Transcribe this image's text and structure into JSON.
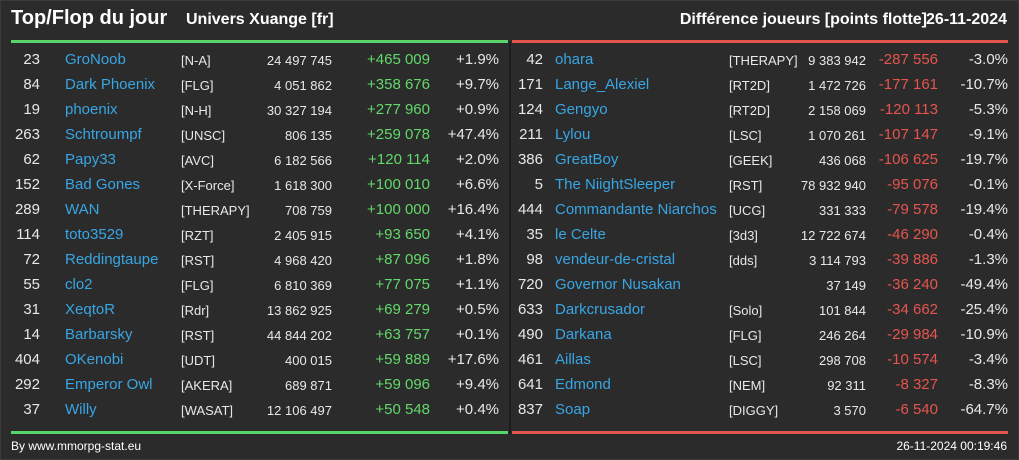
{
  "header": {
    "title": "Top/Flop du jour",
    "universe": "Univers Xuange [fr]",
    "metric": "Différence joueurs [points flotte]",
    "date": "26-11-2024"
  },
  "colors": {
    "top_bar": "#57d46a",
    "flop_bar": "#e4554d",
    "player_link": "#38a6e4",
    "positive": "#63d86a",
    "negative": "#e5554e"
  },
  "top": [
    {
      "rank": "23",
      "name": "GroNoob",
      "alliance": "[N-A]",
      "points": "24 497 745",
      "diff": "+465 009",
      "pct": "+1.9%"
    },
    {
      "rank": "84",
      "name": "Dark Phoenix",
      "alliance": "[FLG]",
      "points": "4 051 862",
      "diff": "+358 676",
      "pct": "+9.7%"
    },
    {
      "rank": "19",
      "name": "phoenix",
      "alliance": "[N-H]",
      "points": "30 327 194",
      "diff": "+277 960",
      "pct": "+0.9%"
    },
    {
      "rank": "263",
      "name": "Schtroumpf",
      "alliance": "[UNSC]",
      "points": "806 135",
      "diff": "+259 078",
      "pct": "+47.4%"
    },
    {
      "rank": "62",
      "name": "Papy33",
      "alliance": "[AVC]",
      "points": "6 182 566",
      "diff": "+120 114",
      "pct": "+2.0%"
    },
    {
      "rank": "152",
      "name": "Bad Gones",
      "alliance": "[X-Force]",
      "points": "1 618 300",
      "diff": "+100 010",
      "pct": "+6.6%"
    },
    {
      "rank": "289",
      "name": "WAN",
      "alliance": "[THERAPY]",
      "points": "708 759",
      "diff": "+100 000",
      "pct": "+16.4%"
    },
    {
      "rank": "114",
      "name": "toto3529",
      "alliance": "[RZT]",
      "points": "2 405 915",
      "diff": "+93 650",
      "pct": "+4.1%"
    },
    {
      "rank": "72",
      "name": "Reddingtaupe",
      "alliance": "[RST]",
      "points": "4 968 420",
      "diff": "+87 096",
      "pct": "+1.8%"
    },
    {
      "rank": "55",
      "name": "clo2",
      "alliance": "[FLG]",
      "points": "6 810 369",
      "diff": "+77 075",
      "pct": "+1.1%"
    },
    {
      "rank": "31",
      "name": "XeqtoR",
      "alliance": "[Rdr]",
      "points": "13 862 925",
      "diff": "+69 279",
      "pct": "+0.5%"
    },
    {
      "rank": "14",
      "name": "Barbarsky",
      "alliance": "[RST]",
      "points": "44 844 202",
      "diff": "+63 757",
      "pct": "+0.1%"
    },
    {
      "rank": "404",
      "name": "OKenobi",
      "alliance": "[UDT]",
      "points": "400 015",
      "diff": "+59 889",
      "pct": "+17.6%"
    },
    {
      "rank": "292",
      "name": "Emperor Owl",
      "alliance": "[AKERA]",
      "points": "689 871",
      "diff": "+59 096",
      "pct": "+9.4%"
    },
    {
      "rank": "37",
      "name": "Willy",
      "alliance": "[WASAT]",
      "points": "12 106 497",
      "diff": "+50 548",
      "pct": "+0.4%"
    }
  ],
  "flop": [
    {
      "rank": "42",
      "name": "ohara",
      "alliance": "[THERAPY]",
      "points": "9 383 942",
      "diff": "-287 556",
      "pct": "-3.0%"
    },
    {
      "rank": "171",
      "name": "Lange_Alexiel",
      "alliance": "[RT2D]",
      "points": "1 472 726",
      "diff": "-177 161",
      "pct": "-10.7%"
    },
    {
      "rank": "124",
      "name": "Gengyo",
      "alliance": "[RT2D]",
      "points": "2 158 069",
      "diff": "-120 113",
      "pct": "-5.3%"
    },
    {
      "rank": "211",
      "name": "Lylou",
      "alliance": "[LSC]",
      "points": "1 070 261",
      "diff": "-107 147",
      "pct": "-9.1%"
    },
    {
      "rank": "386",
      "name": "GreatBoy",
      "alliance": "[GEEK]",
      "points": "436 068",
      "diff": "-106 625",
      "pct": "-19.7%"
    },
    {
      "rank": "5",
      "name": "The NiightSleeper",
      "alliance": "[RST]",
      "points": "78 932 940",
      "diff": "-95 076",
      "pct": "-0.1%"
    },
    {
      "rank": "444",
      "name": "Commandante Niarchos",
      "alliance": "[UCG]",
      "points": "331 333",
      "diff": "-79 578",
      "pct": "-19.4%"
    },
    {
      "rank": "35",
      "name": "le Celte",
      "alliance": "[3d3]",
      "points": "12 722 674",
      "diff": "-46 290",
      "pct": "-0.4%"
    },
    {
      "rank": "98",
      "name": "vendeur-de-cristal",
      "alliance": "[dds]",
      "points": "3 114 793",
      "diff": "-39 886",
      "pct": "-1.3%"
    },
    {
      "rank": "720",
      "name": "Governor Nusakan",
      "alliance": "",
      "points": "37 149",
      "diff": "-36 240",
      "pct": "-49.4%"
    },
    {
      "rank": "633",
      "name": "Darkcrusador",
      "alliance": "[Solo]",
      "points": "101 844",
      "diff": "-34 662",
      "pct": "-25.4%"
    },
    {
      "rank": "490",
      "name": "Darkana",
      "alliance": "[FLG]",
      "points": "246 264",
      "diff": "-29 984",
      "pct": "-10.9%"
    },
    {
      "rank": "461",
      "name": "Aillas",
      "alliance": "[LSC]",
      "points": "298 708",
      "diff": "-10 574",
      "pct": "-3.4%"
    },
    {
      "rank": "641",
      "name": "Edmond",
      "alliance": "[NEM]",
      "points": "92 311",
      "diff": "-8 327",
      "pct": "-8.3%"
    },
    {
      "rank": "837",
      "name": "Soap",
      "alliance": "[DIGGY]",
      "points": "3 570",
      "diff": "-6 540",
      "pct": "-64.7%"
    }
  ],
  "footer": {
    "credit": "By www.mmorpg-stat.eu",
    "timestamp": "26-11-2024 00:19:46"
  }
}
